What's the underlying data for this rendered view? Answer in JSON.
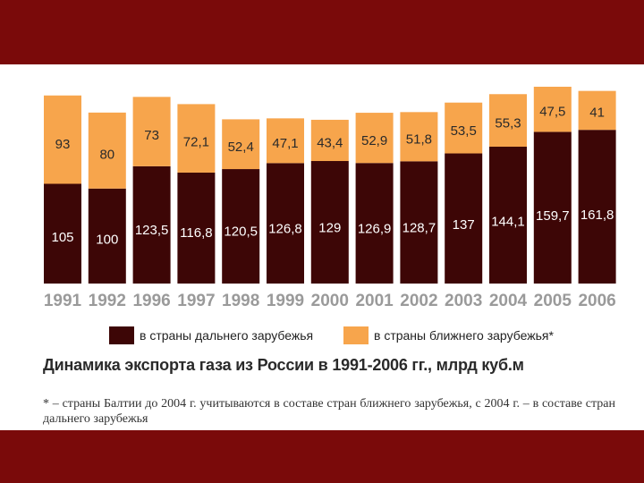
{
  "chart_data": {
    "type": "bar",
    "stacked": true,
    "categories": [
      "1991",
      "1992",
      "1996",
      "1997",
      "1998",
      "1999",
      "2000",
      "2001",
      "2002",
      "2003",
      "2004",
      "2005",
      "2006"
    ],
    "series": [
      {
        "name": "в страны дальнего зарубежья",
        "color": "#3d0606",
        "values": [
          105,
          100,
          123.5,
          116.8,
          120.5,
          126.8,
          129,
          126.9,
          128.7,
          137,
          144.1,
          159.7,
          161.8
        ],
        "labels": [
          "105",
          "100",
          "123,5",
          "116,8",
          "120,5",
          "126,8",
          "129",
          "126,9",
          "128,7",
          "137",
          "144,1",
          "159,7",
          "161,8"
        ]
      },
      {
        "name": "в страны ближнего зарубежья*",
        "color": "#f7a54c",
        "values": [
          93,
          80,
          73,
          72.1,
          52.4,
          47.1,
          43.4,
          52.9,
          51.8,
          53.5,
          55.3,
          47.5,
          41
        ],
        "labels": [
          "93",
          "80",
          "73",
          "72,1",
          "52,4",
          "47,1",
          "43,4",
          "52,9",
          "51,8",
          "53,5",
          "55,3",
          "47,5",
          "41"
        ]
      }
    ],
    "title": "Динамика экспорта газа из России в 1991-2006 гг., млрд куб.м",
    "ylim": [
      0,
      210
    ],
    "grid": false,
    "legend": "bottom"
  },
  "footnote": "* – страны Балтии до 2004 г. учитываются в составе стран ближнего зарубежья, с 2004 г. – в составе стран дальнего зарубежья"
}
